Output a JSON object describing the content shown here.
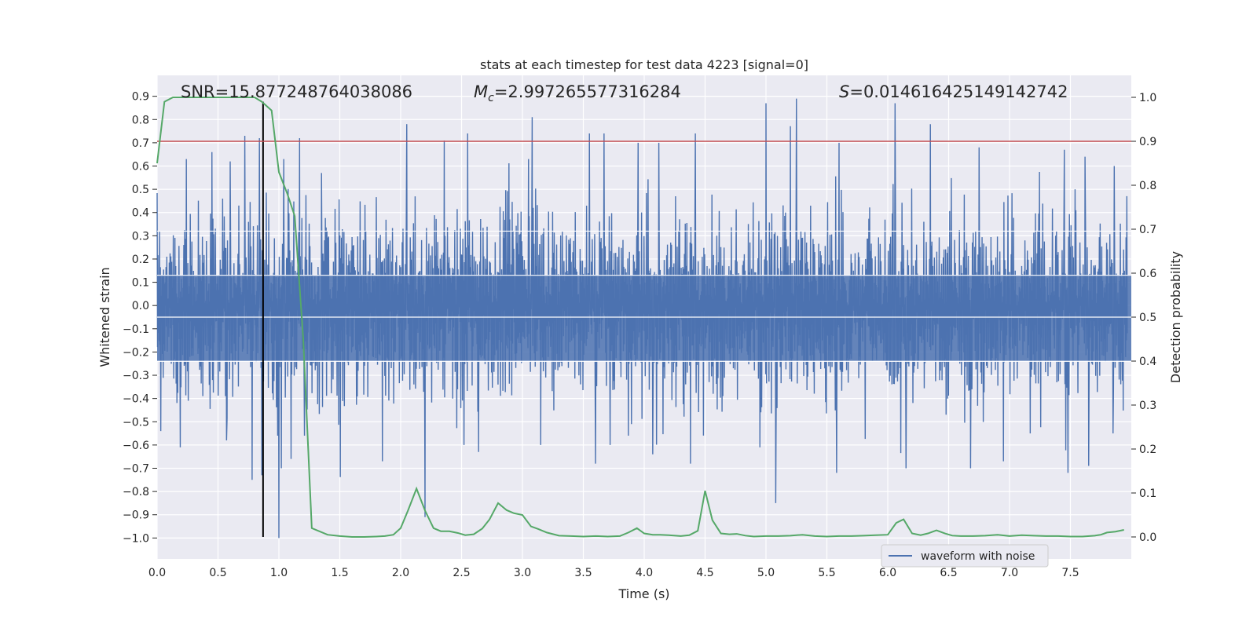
{
  "chart_data": {
    "type": "line",
    "title": "stats at each timestep for test data 4223 [signal=0]",
    "xlabel": "Time (s)",
    "ylabel_left": "Whitened strain",
    "ylabel_right": "Detection probability",
    "xlim": [
      0.0,
      8.0
    ],
    "ylim_left": [
      -1.09,
      0.99
    ],
    "ylim_right": [
      -0.05,
      1.05
    ],
    "x_ticks": [
      "0.0",
      "0.5",
      "1.0",
      "1.5",
      "2.0",
      "2.5",
      "3.0",
      "3.5",
      "4.0",
      "4.5",
      "5.0",
      "5.5",
      "6.0",
      "6.5",
      "7.0",
      "7.5"
    ],
    "y_left_ticks": [
      "0.9",
      "0.8",
      "0.7",
      "0.6",
      "0.5",
      "0.4",
      "0.3",
      "0.2",
      "0.1",
      "0.0",
      "−0.1",
      "−0.2",
      "−0.3",
      "−0.4",
      "−0.5",
      "−0.6",
      "−0.7",
      "−0.8",
      "−0.9",
      "−1.0"
    ],
    "y_right_ticks": [
      "0.0",
      "0.1",
      "0.2",
      "0.3",
      "0.4",
      "0.5",
      "0.6",
      "0.7",
      "0.8",
      "0.9",
      "1.0"
    ],
    "grid": true,
    "legend_position": "lower-right",
    "annotations": {
      "snr": "SNR=15.877248764038086",
      "mc_prefix": "M",
      "mc_sub": "c",
      "mc_value": "=2.997265577316284",
      "s_prefix": "S",
      "s_value": "=0.014616425149142742"
    },
    "threshold_right": 0.9,
    "marker_time": 0.87,
    "series": [
      {
        "name": "waveform with noise",
        "axis": "left",
        "color": "#4c72b0",
        "noise_envelope": 0.45,
        "peaks": [
          [
            0.24,
            0.63
          ],
          [
            0.45,
            0.66
          ],
          [
            0.6,
            0.62
          ],
          [
            0.72,
            0.73
          ],
          [
            0.84,
            0.72
          ],
          [
            1.04,
            0.63
          ],
          [
            1.17,
            0.72
          ],
          [
            1.21,
            0.8
          ],
          [
            1.35,
            0.57
          ],
          [
            2.05,
            0.78
          ],
          [
            2.55,
            0.74
          ],
          [
            3.05,
            0.63
          ],
          [
            3.08,
            0.81
          ],
          [
            3.55,
            0.74
          ],
          [
            3.67,
            0.74
          ],
          [
            3.95,
            0.7
          ],
          [
            4.12,
            0.7
          ],
          [
            4.42,
            0.74
          ],
          [
            5.0,
            0.87
          ],
          [
            5.25,
            0.89
          ],
          [
            5.6,
            0.7
          ],
          [
            6.06,
            0.87
          ],
          [
            6.35,
            0.78
          ],
          [
            6.75,
            0.68
          ],
          [
            7.45,
            0.67
          ],
          [
            7.62,
            0.64
          ],
          [
            7.86,
            0.6
          ],
          [
            0.03,
            -0.54
          ],
          [
            0.19,
            -0.61
          ],
          [
            0.57,
            -0.58
          ],
          [
            0.78,
            -0.75
          ],
          [
            0.86,
            -0.73
          ],
          [
            0.99,
            -0.56
          ],
          [
            1.0,
            -1.0
          ],
          [
            1.02,
            -0.7
          ],
          [
            1.1,
            -0.66
          ],
          [
            1.21,
            -0.56
          ],
          [
            1.85,
            -0.67
          ],
          [
            2.2,
            -0.91
          ],
          [
            2.52,
            -0.6
          ],
          [
            2.64,
            -0.63
          ],
          [
            3.15,
            -0.6
          ],
          [
            3.6,
            -0.68
          ],
          [
            3.72,
            -0.6
          ],
          [
            3.87,
            -0.56
          ],
          [
            4.07,
            -0.64
          ],
          [
            4.38,
            -0.68
          ],
          [
            4.95,
            -0.61
          ],
          [
            5.08,
            -0.85
          ],
          [
            5.58,
            -0.72
          ],
          [
            6.15,
            -0.7
          ],
          [
            6.68,
            -0.7
          ],
          [
            6.95,
            -0.67
          ],
          [
            7.17,
            -0.55
          ],
          [
            7.48,
            -0.72
          ],
          [
            7.65,
            -0.69
          ],
          [
            7.85,
            -0.55
          ]
        ]
      },
      {
        "name": "",
        "axis": "right",
        "color": "#55a868",
        "x": [
          0.0,
          0.06,
          0.13,
          0.2,
          0.3,
          0.4,
          0.5,
          0.6,
          0.7,
          0.8,
          0.86,
          0.94,
          1.0,
          1.07,
          1.13,
          1.2,
          1.27,
          1.4,
          1.5,
          1.6,
          1.7,
          1.8,
          1.87,
          1.94,
          2.0,
          2.06,
          2.13,
          2.2,
          2.27,
          2.33,
          2.4,
          2.47,
          2.53,
          2.6,
          2.67,
          2.73,
          2.8,
          2.87,
          2.93,
          3.0,
          3.07,
          3.13,
          3.2,
          3.3,
          3.4,
          3.5,
          3.6,
          3.7,
          3.8,
          3.87,
          3.94,
          4.0,
          4.07,
          4.13,
          4.2,
          4.3,
          4.37,
          4.44,
          4.5,
          4.56,
          4.63,
          4.7,
          4.76,
          4.83,
          4.9,
          5.0,
          5.1,
          5.2,
          5.3,
          5.4,
          5.5,
          5.6,
          5.7,
          5.8,
          5.9,
          6.0,
          6.07,
          6.13,
          6.2,
          6.27,
          6.33,
          6.4,
          6.47,
          6.53,
          6.6,
          6.7,
          6.8,
          6.9,
          7.0,
          7.1,
          7.2,
          7.3,
          7.4,
          7.5,
          7.6,
          7.7,
          7.75,
          7.8,
          7.87,
          7.94
        ],
        "values": [
          0.85,
          0.99,
          1.0,
          1.0,
          1.0,
          1.0,
          1.0,
          1.0,
          1.0,
          1.0,
          0.99,
          0.97,
          0.83,
          0.78,
          0.73,
          0.45,
          0.02,
          0.005,
          0.002,
          0.0,
          0.0,
          0.001,
          0.002,
          0.005,
          0.02,
          0.06,
          0.11,
          0.06,
          0.02,
          0.013,
          0.013,
          0.009,
          0.004,
          0.006,
          0.019,
          0.04,
          0.077,
          0.061,
          0.054,
          0.05,
          0.024,
          0.018,
          0.01,
          0.003,
          0.002,
          0.001,
          0.002,
          0.001,
          0.002,
          0.01,
          0.02,
          0.008,
          0.005,
          0.005,
          0.004,
          0.002,
          0.004,
          0.014,
          0.105,
          0.038,
          0.008,
          0.006,
          0.007,
          0.003,
          0.001,
          0.002,
          0.002,
          0.003,
          0.005,
          0.002,
          0.001,
          0.002,
          0.002,
          0.003,
          0.004,
          0.005,
          0.032,
          0.04,
          0.008,
          0.004,
          0.008,
          0.015,
          0.008,
          0.003,
          0.002,
          0.002,
          0.003,
          0.005,
          0.002,
          0.004,
          0.003,
          0.002,
          0.002,
          0.001,
          0.001,
          0.003,
          0.005,
          0.01,
          0.012,
          0.016
        ]
      }
    ]
  }
}
